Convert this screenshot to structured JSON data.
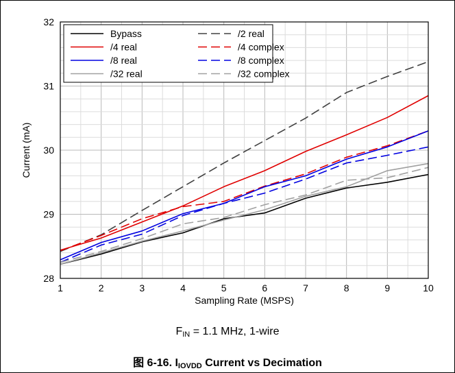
{
  "chart_data": {
    "type": "line",
    "xlabel": "Sampling Rate (MSPS)",
    "ylabel": "Current (mA)",
    "xlim": [
      1,
      10
    ],
    "ylim": [
      28,
      32
    ],
    "x_ticks": [
      1,
      2,
      3,
      4,
      5,
      6,
      7,
      8,
      9,
      10
    ],
    "y_ticks": [
      28,
      29,
      30,
      31,
      32
    ],
    "grid": true,
    "legend_position": "top-left",
    "x": [
      1,
      2,
      3,
      4,
      5,
      6,
      7,
      8,
      9,
      10
    ],
    "series": [
      {
        "name": "Bypass",
        "color": "#000000",
        "dash": "solid",
        "values": [
          28.22,
          28.38,
          28.57,
          28.71,
          28.93,
          29.02,
          29.25,
          29.41,
          29.5,
          29.62
        ]
      },
      {
        "name": "/2 real",
        "color": "#404040",
        "dash": "dashed",
        "values": [
          28.42,
          28.68,
          29.06,
          29.43,
          29.8,
          30.15,
          30.5,
          30.9,
          31.15,
          31.38
        ]
      },
      {
        "name": "/4 real",
        "color": "#e00000",
        "dash": "solid",
        "values": [
          28.44,
          28.63,
          28.88,
          29.13,
          29.43,
          29.68,
          29.98,
          30.24,
          30.51,
          30.85
        ]
      },
      {
        "name": "/4 complex",
        "color": "#e00000",
        "dash": "dashed",
        "values": [
          28.43,
          28.67,
          28.93,
          29.12,
          29.2,
          29.44,
          29.63,
          29.89,
          30.07,
          30.3
        ]
      },
      {
        "name": "/8 real",
        "color": "#0000e0",
        "dash": "solid",
        "values": [
          28.29,
          28.56,
          28.74,
          29.01,
          29.17,
          29.43,
          29.6,
          29.86,
          30.05,
          30.3
        ]
      },
      {
        "name": "/8 complex",
        "color": "#0000e0",
        "dash": "dashed",
        "values": [
          28.25,
          28.52,
          28.69,
          28.98,
          29.17,
          29.33,
          29.55,
          29.8,
          29.92,
          30.05
        ]
      },
      {
        "name": "/32 real",
        "color": "#a0a0a0",
        "dash": "solid",
        "values": [
          28.22,
          28.4,
          28.58,
          28.74,
          28.91,
          29.07,
          29.28,
          29.43,
          29.68,
          29.79
        ]
      },
      {
        "name": "/32 complex",
        "color": "#a0a0a0",
        "dash": "dashed",
        "values": [
          28.25,
          28.42,
          28.62,
          28.85,
          28.95,
          29.15,
          29.3,
          29.53,
          29.57,
          29.73
        ]
      }
    ]
  },
  "caption": {
    "condition_prefix": "F",
    "condition_sub": "IN",
    "condition_suffix": " = 1.1 MHz, 1-wire",
    "title_prefix": "图 6-16. I",
    "title_sub": "IOVDD",
    "title_suffix": " Current vs Decimation"
  }
}
